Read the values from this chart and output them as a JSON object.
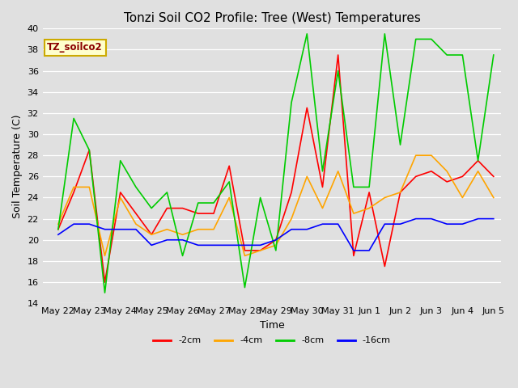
{
  "title": "Tonzi Soil CO2 Profile: Tree (West) Temperatures",
  "xlabel": "Time",
  "ylabel": "Soil Temperature (C)",
  "ylim": [
    14,
    40
  ],
  "yticks": [
    14,
    16,
    18,
    20,
    22,
    24,
    26,
    28,
    30,
    32,
    34,
    36,
    38,
    40
  ],
  "x_labels": [
    "May 22",
    "May 23",
    "May 24",
    "May 25",
    "May 26",
    "May 27",
    "May 28",
    "May 29",
    "May 30",
    "May 31",
    "Jun 1",
    "Jun 2",
    "Jun 3",
    "Jun 4",
    "Jun 5"
  ],
  "x_tick_positions": [
    0,
    2,
    4,
    6,
    8,
    10,
    12,
    14,
    16,
    18,
    20,
    22,
    24,
    26,
    28
  ],
  "series": {
    "-2cm": {
      "color": "#ff0000",
      "values": [
        21.0,
        24.5,
        28.5,
        16.0,
        24.5,
        22.5,
        20.5,
        23.0,
        23.0,
        22.5,
        22.5,
        27.0,
        19.0,
        19.0,
        20.0,
        24.5,
        32.5,
        25.0,
        37.5,
        18.5,
        24.5,
        17.5,
        24.5,
        26.0,
        26.5,
        25.5,
        26.0,
        27.5,
        26.0
      ]
    },
    "-4cm": {
      "color": "#ffa500",
      "values": [
        21.5,
        25.0,
        25.0,
        18.5,
        24.0,
        21.5,
        20.5,
        21.0,
        20.5,
        21.0,
        21.0,
        24.0,
        18.5,
        19.0,
        19.5,
        22.0,
        26.0,
        23.0,
        26.5,
        22.5,
        23.0,
        24.0,
        24.5,
        28.0,
        28.0,
        26.5,
        24.0,
        26.5,
        24.0
      ]
    },
    "-8cm": {
      "color": "#00cc00",
      "values": [
        21.0,
        31.5,
        28.5,
        15.0,
        27.5,
        25.0,
        23.0,
        24.5,
        18.5,
        23.5,
        23.5,
        25.5,
        15.5,
        24.0,
        19.0,
        33.0,
        39.5,
        26.5,
        36.0,
        25.0,
        25.0,
        39.5,
        29.0,
        39.0,
        39.0,
        37.5,
        37.5,
        27.5,
        37.5
      ]
    },
    "-16cm": {
      "color": "#0000ff",
      "values": [
        20.5,
        21.5,
        21.5,
        21.0,
        21.0,
        21.0,
        19.5,
        20.0,
        20.0,
        19.5,
        19.5,
        19.5,
        19.5,
        19.5,
        20.0,
        21.0,
        21.0,
        21.5,
        21.5,
        19.0,
        19.0,
        21.5,
        21.5,
        22.0,
        22.0,
        21.5,
        21.5,
        22.0,
        22.0
      ]
    }
  },
  "legend_label": "TZ_soilco2",
  "legend_label_color": "#8b0000",
  "legend_box_color": "#ffffcc",
  "legend_box_edge": "#ccaa00",
  "background_color": "#e0e0e0",
  "plot_bg_color": "#e0e0e0",
  "grid_color": "#ffffff",
  "title_fontsize": 11,
  "axis_fontsize": 9,
  "tick_fontsize": 8
}
